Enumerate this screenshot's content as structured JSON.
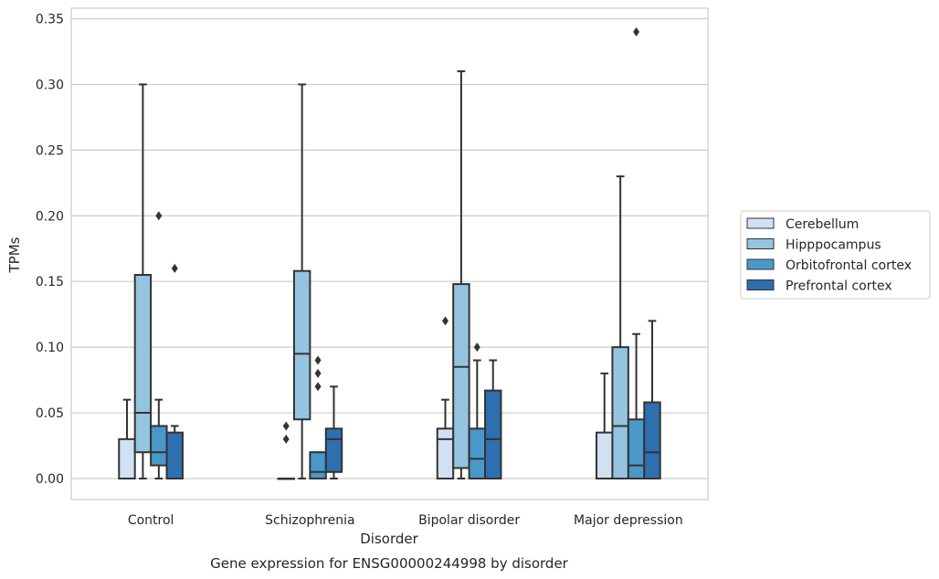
{
  "chart_data": {
    "type": "box",
    "title": "Gene expression for ENSG00000244998 by disorder",
    "xlabel": "Disorder",
    "ylabel": "TPMs",
    "ylim": [
      -0.016,
      0.358
    ],
    "yticks": [
      "0.00",
      "0.05",
      "0.10",
      "0.15",
      "0.20",
      "0.25",
      "0.30",
      "0.35"
    ],
    "categories": [
      "Control",
      "Schizophrenia",
      "Bipolar disorder",
      "Major depression"
    ],
    "grid": true,
    "legend_position": "right",
    "series": [
      {
        "name": "Cerebellum",
        "color": "#d0e1f2",
        "boxes": [
          {
            "min": 0.0,
            "q1": 0.0,
            "median": 0.0,
            "q3": 0.03,
            "max": 0.06,
            "outliers": []
          },
          {
            "min": 0.0,
            "q1": 0.0,
            "median": 0.0,
            "q3": 0.0,
            "max": 0.0,
            "outliers": [
              0.03,
              0.04
            ]
          },
          {
            "min": 0.0,
            "q1": 0.0,
            "median": 0.03,
            "q3": 0.038,
            "max": 0.06,
            "outliers": [
              0.12
            ]
          },
          {
            "min": 0.0,
            "q1": 0.0,
            "median": 0.0,
            "q3": 0.035,
            "max": 0.08,
            "outliers": []
          }
        ]
      },
      {
        "name": "Hipppocampus",
        "color": "#94c4df",
        "boxes": [
          {
            "min": 0.0,
            "q1": 0.02,
            "median": 0.05,
            "q3": 0.155,
            "max": 0.3,
            "outliers": []
          },
          {
            "min": 0.0,
            "q1": 0.045,
            "median": 0.095,
            "q3": 0.158,
            "max": 0.3,
            "outliers": []
          },
          {
            "min": 0.0,
            "q1": 0.008,
            "median": 0.085,
            "q3": 0.148,
            "max": 0.31,
            "outliers": []
          },
          {
            "min": 0.0,
            "q1": 0.0,
            "median": 0.04,
            "q3": 0.1,
            "max": 0.23,
            "outliers": []
          }
        ]
      },
      {
        "name": "Orbitofrontal cortex",
        "color": "#4a98c9",
        "boxes": [
          {
            "min": 0.0,
            "q1": 0.01,
            "median": 0.02,
            "q3": 0.04,
            "max": 0.06,
            "outliers": [
              0.2
            ]
          },
          {
            "min": 0.0,
            "q1": 0.0,
            "median": 0.005,
            "q3": 0.02,
            "max": 0.02,
            "outliers": [
              0.07,
              0.08,
              0.09
            ]
          },
          {
            "min": 0.0,
            "q1": 0.0,
            "median": 0.015,
            "q3": 0.038,
            "max": 0.09,
            "outliers": [
              0.1
            ]
          },
          {
            "min": 0.0,
            "q1": 0.0,
            "median": 0.01,
            "q3": 0.045,
            "max": 0.11,
            "outliers": [
              0.34
            ]
          }
        ]
      },
      {
        "name": "Prefrontal cortex",
        "color": "#2e6fb0",
        "boxes": [
          {
            "min": 0.0,
            "q1": 0.0,
            "median": 0.0,
            "q3": 0.035,
            "max": 0.04,
            "outliers": [
              0.16
            ]
          },
          {
            "min": 0.0,
            "q1": 0.005,
            "median": 0.03,
            "q3": 0.038,
            "max": 0.07,
            "outliers": []
          },
          {
            "min": 0.0,
            "q1": 0.0,
            "median": 0.03,
            "q3": 0.067,
            "max": 0.09,
            "outliers": []
          },
          {
            "min": 0.0,
            "q1": 0.0,
            "median": 0.02,
            "q3": 0.058,
            "max": 0.12,
            "outliers": []
          }
        ]
      }
    ]
  }
}
